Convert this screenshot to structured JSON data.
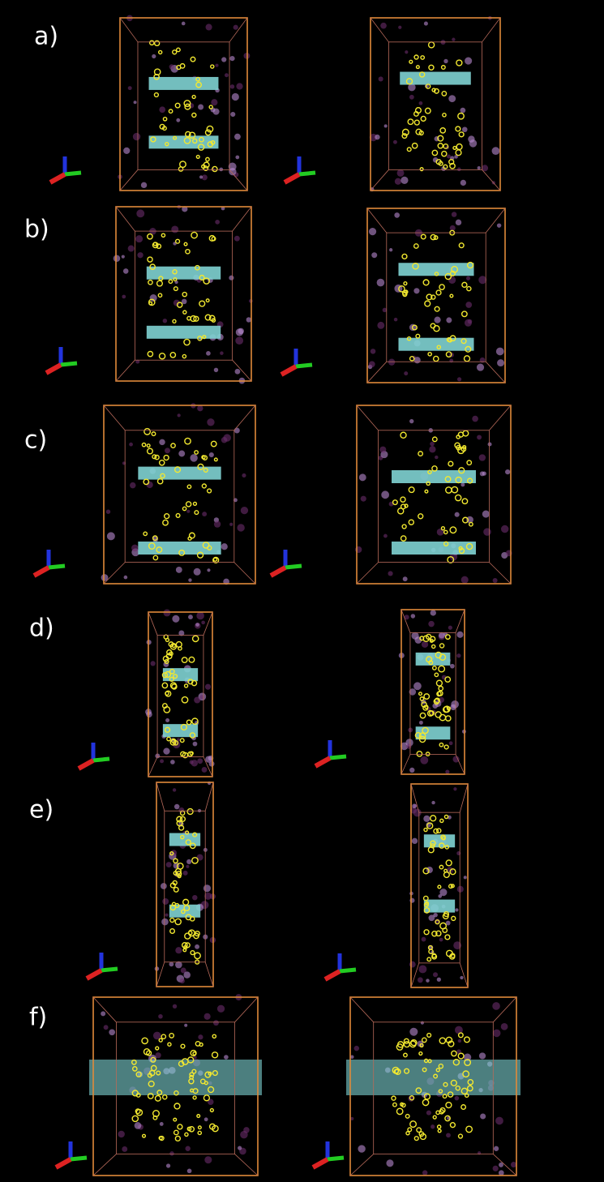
{
  "panels": [
    {
      "label": "a)"
    },
    {
      "label": "b)"
    },
    {
      "label": "c)"
    },
    {
      "label": "d)"
    },
    {
      "label": "e)"
    },
    {
      "label": "f)"
    }
  ]
}
